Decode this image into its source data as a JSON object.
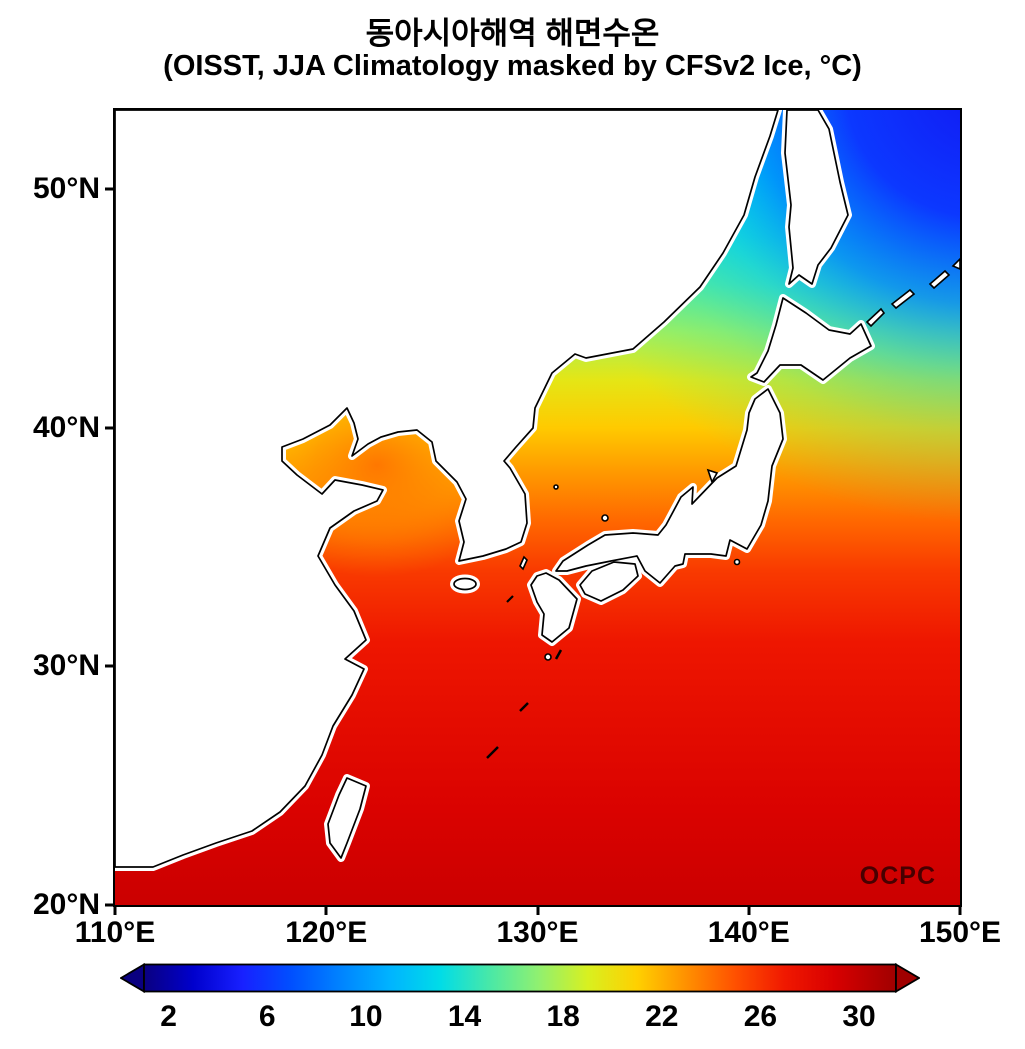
{
  "figure": {
    "title": "동아시아해역 해면수온",
    "subtitle": "(OISST, JJA Climatology masked by CFSv2 Ice, °C)",
    "watermark": "OCPC"
  },
  "chart_data": {
    "type": "heatmap",
    "title": "동아시아해역 해면수온",
    "subtitle": "(OISST, JJA Climatology masked by CFSv2 Ice, °C)",
    "variable": "sea_surface_temperature",
    "units": "°C",
    "dataset": "OISST",
    "season": "JJA Climatology",
    "mask": "CFSv2 Ice",
    "region": "East Asian seas",
    "x_axis": {
      "min": 110,
      "max": 150,
      "ticks": [
        {
          "v": 110,
          "label": "110°E"
        },
        {
          "v": 120,
          "label": "120°E"
        },
        {
          "v": 130,
          "label": "130°E"
        },
        {
          "v": 140,
          "label": "140°E"
        },
        {
          "v": 150,
          "label": "150°E"
        }
      ]
    },
    "y_axis": {
      "min": 20,
      "max": 53.3,
      "ticks": [
        {
          "v": 50,
          "label": "50°N"
        },
        {
          "v": 40,
          "label": "40°N"
        },
        {
          "v": 30,
          "label": "30°N"
        },
        {
          "v": 20,
          "label": "20°N"
        }
      ]
    },
    "colorbar": {
      "orientation": "horizontal",
      "min": 1,
      "max": 31.5,
      "tick_values": [
        2,
        6,
        10,
        14,
        18,
        22,
        26,
        30
      ],
      "colormap": "jet",
      "stops": [
        {
          "v": 1,
          "color": "#0a0080"
        },
        {
          "v": 3,
          "color": "#0000cd"
        },
        {
          "v": 5,
          "color": "#1820ff"
        },
        {
          "v": 7,
          "color": "#0050ff"
        },
        {
          "v": 9,
          "color": "#0084ff"
        },
        {
          "v": 11,
          "color": "#00b4ff"
        },
        {
          "v": 13,
          "color": "#00dce8"
        },
        {
          "v": 15,
          "color": "#48e8a8"
        },
        {
          "v": 17,
          "color": "#90f070"
        },
        {
          "v": 19,
          "color": "#d8f020"
        },
        {
          "v": 21,
          "color": "#ffd000"
        },
        {
          "v": 23,
          "color": "#ff9000"
        },
        {
          "v": 25,
          "color": "#ff5000"
        },
        {
          "v": 27,
          "color": "#f01800"
        },
        {
          "v": 29,
          "color": "#d80000"
        },
        {
          "v": 31.5,
          "color": "#a00000"
        }
      ]
    },
    "sst_profile": [
      {
        "lat": 20,
        "sst": 29.6
      },
      {
        "lat": 24,
        "sst": 28.8
      },
      {
        "lat": 28,
        "sst": 27.9
      },
      {
        "lat": 31,
        "sst": 27.2
      },
      {
        "lat": 34,
        "sst": 25.8
      },
      {
        "lat": 36,
        "sst": 24.3
      },
      {
        "lat": 38,
        "sst": 22.8
      },
      {
        "lat": 40,
        "sst": 21.2
      },
      {
        "lat": 42,
        "sst": 19.6
      },
      {
        "lat": 44,
        "sst": 17.6
      },
      {
        "lat": 46,
        "sst": 15.4
      },
      {
        "lat": 48,
        "sst": 14.0
      },
      {
        "lat": 50.5,
        "sst": 13.0
      },
      {
        "lat": 53.3,
        "sst": 12.2
      }
    ],
    "cold_overlay": [
      {
        "o": 0,
        "sst": 4.5,
        "a": 1
      },
      {
        "o": 0.3,
        "sst": 6,
        "a": 1
      },
      {
        "o": 0.5,
        "sst": 9,
        "a": 0.8
      },
      {
        "o": 0.65,
        "sst": 12,
        "a": 0.5
      },
      {
        "o": 0.8,
        "sst": 14,
        "a": 0.25
      },
      {
        "o": 1,
        "sst": 15,
        "a": 0
      }
    ],
    "warm_overlay": [
      {
        "o": 0,
        "sst": 24,
        "a": 0.85
      },
      {
        "o": 0.45,
        "sst": 23,
        "a": 0.55
      },
      {
        "o": 0.75,
        "sst": 22,
        "a": 0.2
      },
      {
        "o": 1,
        "sst": 22,
        "a": 0
      }
    ],
    "notes": {
      "cold_region": "Sea of Okhotsk / NW Pacific corner, SST ≈ 4–8 °C",
      "warm_region": "Yellow Sea & Bohai Sea, SST ≈ 22–25 °C",
      "south_region": "East/South China Sea & subtropical Pacific, SST ≈ 28–30 °C",
      "land_mask": "white"
    }
  }
}
